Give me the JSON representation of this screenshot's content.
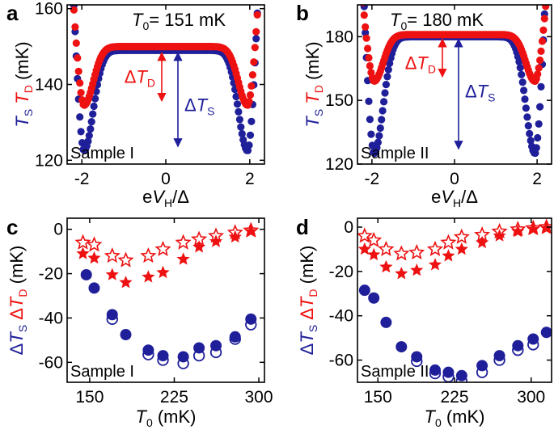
{
  "colors": {
    "blue": "#1f1f9a",
    "red": "#ee1111",
    "black": "#000000"
  },
  "chart_data": [
    {
      "panel": "a",
      "type": "scatter",
      "title": "T0= 151 mK",
      "title_parts": [
        "T",
        "0",
        "= 151 mK"
      ],
      "xlabel": "eV_H/Δ",
      "ylabel": "T_S T_D (mK)",
      "xlim": [
        -2.35,
        2.35
      ],
      "ylim": [
        119,
        161
      ],
      "xticks": [
        -2,
        0,
        2
      ],
      "yticks": [
        120,
        140,
        160
      ],
      "sample_label": "Sample I",
      "annotations": {
        "delta_d": "ΔT_D",
        "delta_s": "ΔT_S",
        "delta_d_range": [
          135,
          149
        ],
        "delta_s_range": [
          123,
          149
        ]
      },
      "series": [
        {
          "name": "T_S",
          "color": "blue",
          "center": 149,
          "dip": 122.5,
          "outer": 161
        },
        {
          "name": "T_D",
          "color": "red",
          "center": 150,
          "dip": 134.5,
          "outer": 161
        }
      ]
    },
    {
      "panel": "b",
      "type": "scatter",
      "title": "T0= 180 mK",
      "title_parts": [
        "T",
        "0",
        "= 180 mK"
      ],
      "xlabel": "eV_H/Δ",
      "ylabel": "T_S T_D (mK)",
      "xlim": [
        -2.35,
        2.35
      ],
      "ylim": [
        120,
        195
      ],
      "xticks": [
        -2,
        0,
        2
      ],
      "yticks": [
        120,
        150,
        180
      ],
      "sample_label": "Sample II",
      "annotations": {
        "delta_d": "ΔT_D",
        "delta_s": "ΔT_S",
        "delta_d_range": [
          160,
          180
        ],
        "delta_s_range": [
          126,
          180
        ]
      },
      "series": [
        {
          "name": "T_S",
          "color": "blue",
          "center": 180,
          "dip": 125,
          "outer": 190
        },
        {
          "name": "T_D",
          "color": "red",
          "center": 181,
          "dip": 159,
          "outer": 190
        }
      ]
    },
    {
      "panel": "c",
      "type": "scatter",
      "xlabel": "T0 (mK)",
      "ylabel": "ΔT_S ΔT_D (mK)",
      "xlim": [
        130,
        305
      ],
      "ylim": [
        -69,
        5
      ],
      "xticks": [
        150,
        225,
        300
      ],
      "yticks": [
        0,
        -20,
        -40,
        -60
      ],
      "sample_label": "Sample I",
      "series": [
        {
          "name": "ΔT_S filled",
          "color": "blue",
          "marker": "circle-filled",
          "x": [
            147,
            154,
            170,
            182,
            202,
            215,
            233,
            247,
            262,
            279,
            293
          ],
          "y": [
            -20.5,
            -26.5,
            -38.5,
            -47.5,
            -54.5,
            -57,
            -57.5,
            -53.5,
            -52.5,
            -48.5,
            -40.5
          ]
        },
        {
          "name": "ΔT_S open",
          "color": "blue",
          "marker": "circle-open",
          "x": [
            170,
            202,
            215,
            233,
            247,
            262,
            279,
            293
          ],
          "y": [
            -40.5,
            -56.5,
            -59,
            -60.5,
            -57,
            -55.5,
            -49.5,
            -43
          ]
        },
        {
          "name": "ΔT_D filled",
          "color": "red",
          "marker": "star-filled",
          "x": [
            144,
            154,
            170,
            182,
            202,
            215,
            233,
            247,
            262,
            279,
            293
          ],
          "y": [
            -11,
            -13,
            -20.5,
            -24,
            -21.5,
            -19.5,
            -13.5,
            -8,
            -5.5,
            -3.5,
            -1
          ]
        },
        {
          "name": "ΔT_D open",
          "color": "red",
          "marker": "star-open",
          "x": [
            144,
            154,
            170,
            182,
            202,
            215,
            233,
            247,
            262,
            279,
            293
          ],
          "y": [
            -6,
            -7,
            -12,
            -14,
            -12,
            -9,
            -6,
            -4.5,
            -3,
            -1.5,
            -0.5
          ]
        }
      ]
    },
    {
      "panel": "d",
      "type": "scatter",
      "xlabel": "T0 (mK)",
      "ylabel": "ΔT_S ΔT_D (mK)",
      "xlim": [
        130,
        320
      ],
      "ylim": [
        -70,
        4
      ],
      "xticks": [
        150,
        225,
        300
      ],
      "yticks": [
        0,
        -20,
        -40,
        -60
      ],
      "sample_label": "Sample II",
      "series": [
        {
          "name": "ΔT_S filled",
          "color": "blue",
          "marker": "circle-filled",
          "x": [
            137,
            146,
            158,
            173,
            188,
            206,
            219,
            232,
            252,
            269,
            287,
            302,
            315
          ],
          "y": [
            -28.5,
            -32,
            -43,
            -54,
            -58.5,
            -64.5,
            -65.5,
            -67,
            -62.5,
            -58,
            -53.5,
            -50.5,
            -47.5
          ]
        },
        {
          "name": "ΔT_S open",
          "color": "blue",
          "marker": "circle-open",
          "x": [
            188,
            206,
            219,
            232,
            252,
            269,
            287,
            302
          ],
          "y": [
            -60.5,
            -66,
            -67.5,
            -69.5,
            -65.5,
            -60,
            -55.5,
            -53
          ]
        },
        {
          "name": "ΔT_D filled",
          "color": "red",
          "marker": "star-filled",
          "x": [
            137,
            146,
            158,
            173,
            188,
            206,
            219,
            232,
            252,
            269,
            287,
            302,
            315
          ],
          "y": [
            -10,
            -12.5,
            -18,
            -21,
            -19.5,
            -17,
            -13,
            -10,
            -7,
            -4,
            -2,
            -1,
            -0.5
          ]
        },
        {
          "name": "ΔT_D open",
          "color": "red",
          "marker": "star-open",
          "x": [
            137,
            146,
            158,
            173,
            188,
            206,
            219,
            232,
            252,
            269,
            287,
            302,
            315
          ],
          "y": [
            -4,
            -6,
            -10,
            -12,
            -11.5,
            -10,
            -7,
            -4.5,
            -3.5,
            -2,
            -1,
            -0.5,
            0
          ]
        }
      ]
    }
  ]
}
